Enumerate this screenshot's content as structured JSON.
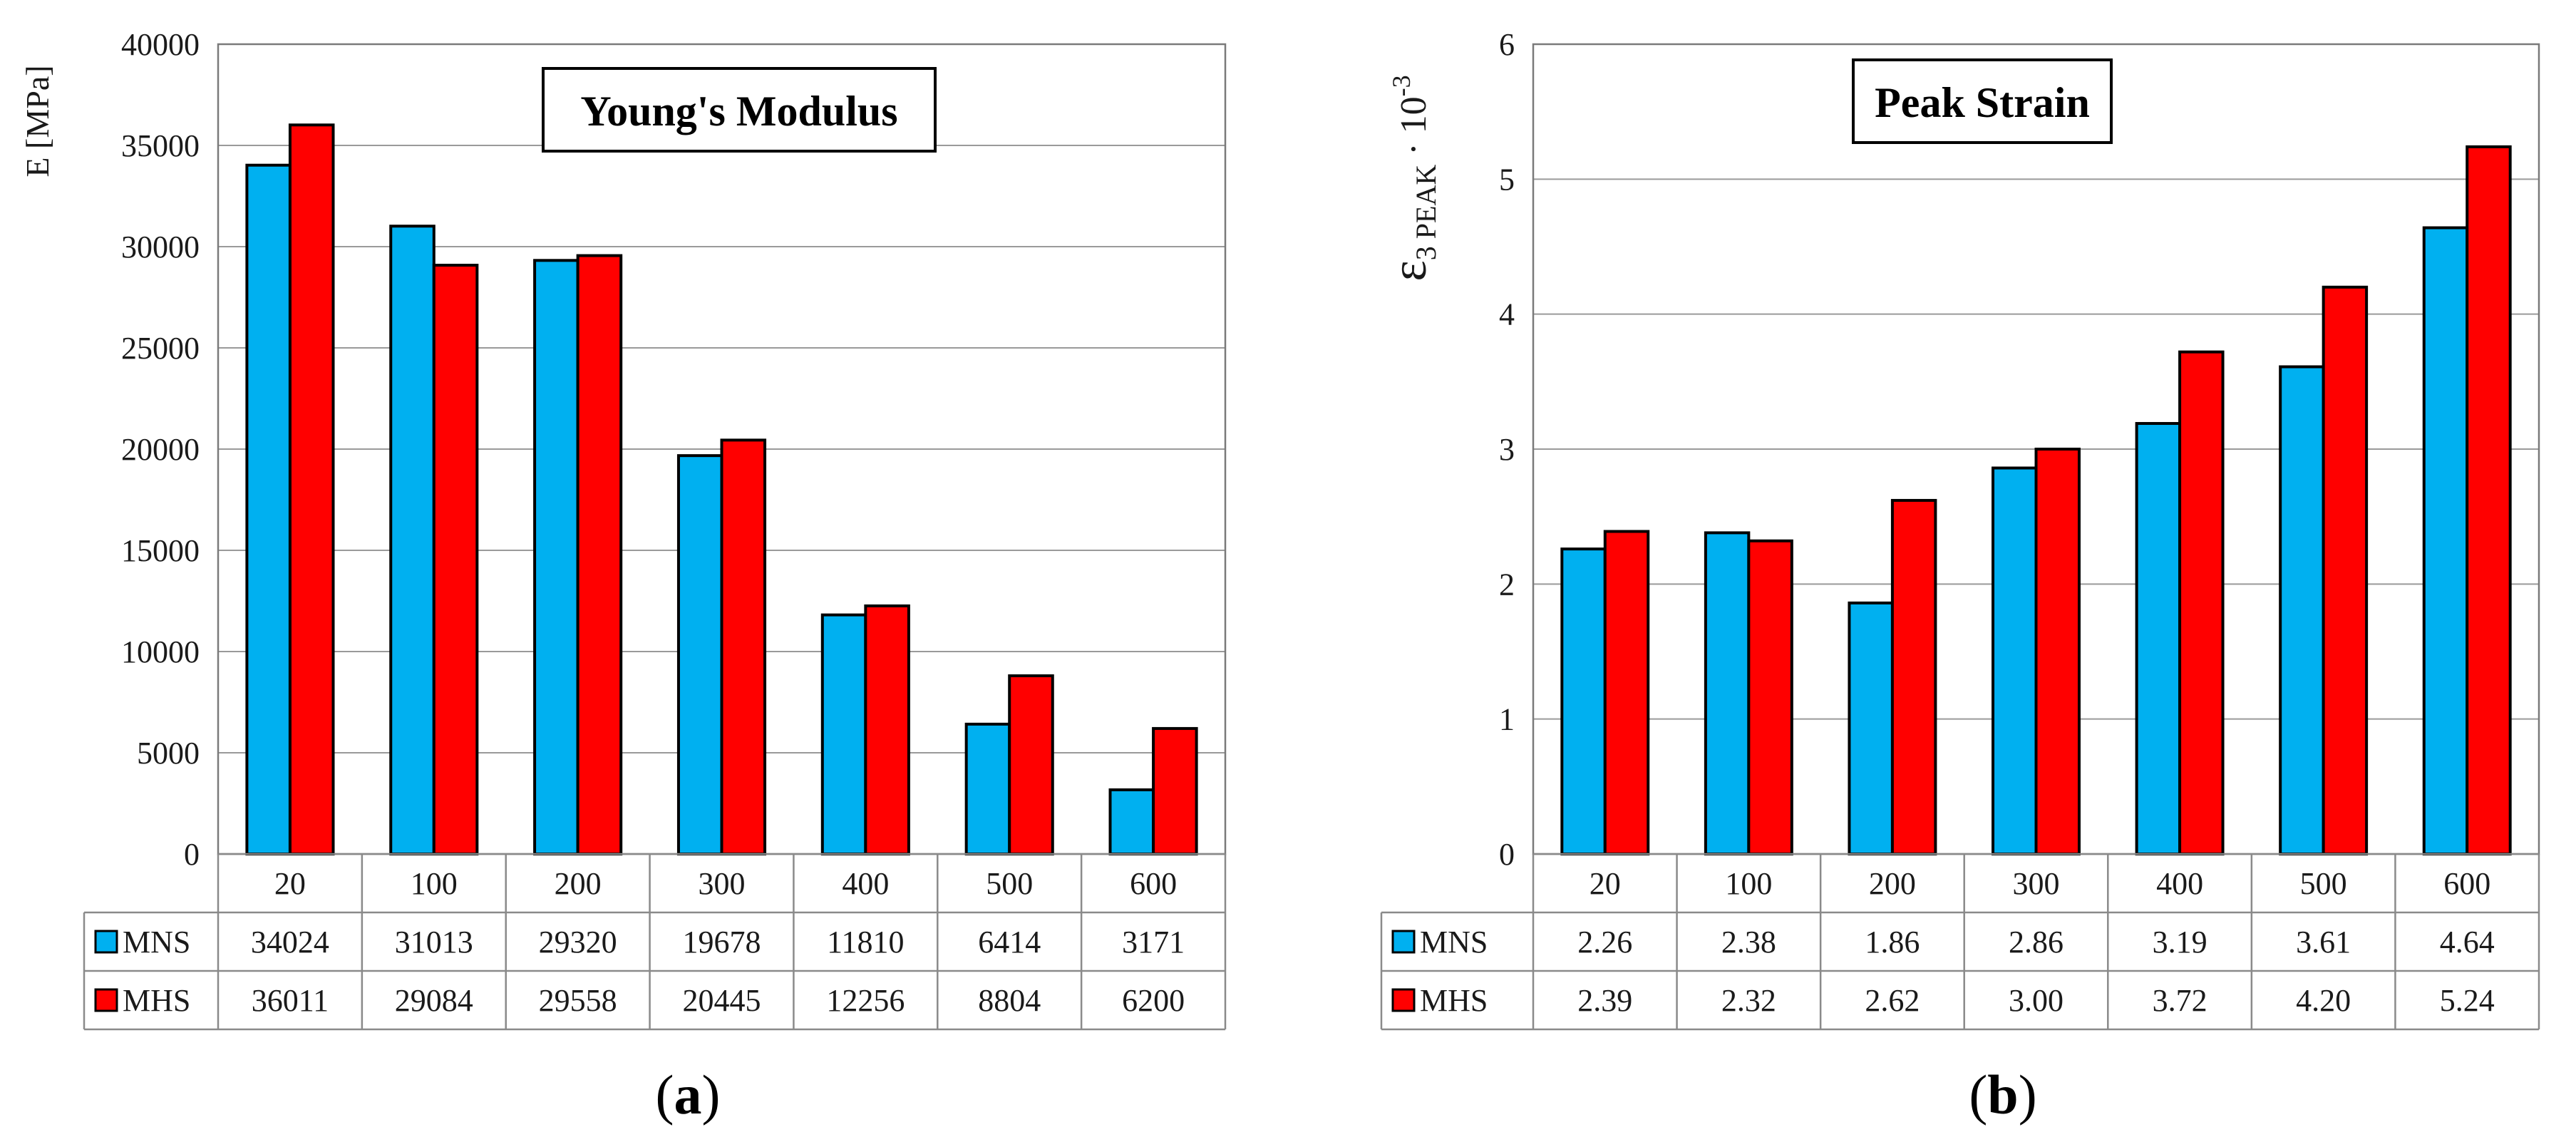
{
  "colors": {
    "MNS": "#00b0f0",
    "MHS": "#ff0000"
  },
  "chart_data": [
    {
      "type": "bar",
      "title": "Young's Modulus",
      "ylabel": "E  [MPa]",
      "xlabel": "",
      "categories": [
        "20",
        "100",
        "200",
        "300",
        "400",
        "500",
        "600"
      ],
      "ylim": [
        0,
        40000
      ],
      "yticks": [
        0,
        5000,
        10000,
        15000,
        20000,
        25000,
        30000,
        35000,
        40000
      ],
      "ytick_labels": [
        "0",
        "5000",
        "10000",
        "15000",
        "20000",
        "25000",
        "30000",
        "35000",
        "40000"
      ],
      "grid": true,
      "legend": "data-table-below",
      "series": [
        {
          "name": "MNS",
          "values": [
            34024,
            31013,
            29320,
            19678,
            11810,
            6414,
            3171
          ],
          "labels": [
            "34024",
            "31013",
            "29320",
            "19678",
            "11810",
            "6414",
            "3171"
          ]
        },
        {
          "name": "MHS",
          "values": [
            36011,
            29084,
            29558,
            20445,
            12256,
            8804,
            6200
          ],
          "labels": [
            "36011",
            "29084",
            "29558",
            "20445",
            "12256",
            "8804",
            "6200"
          ]
        }
      ],
      "caption_open": "(",
      "caption_letter": "a",
      "caption_close": ")"
    },
    {
      "type": "bar",
      "title": "Peak Strain",
      "ylabel_symbol": "ε",
      "ylabel_sub": "3 PEAK",
      "ylabel_rest": " · 10",
      "ylabel_sup": "-3",
      "xlabel": "",
      "categories": [
        "20",
        "100",
        "200",
        "300",
        "400",
        "500",
        "600"
      ],
      "ylim": [
        0,
        6
      ],
      "yticks": [
        0,
        1,
        2,
        3,
        4,
        5,
        6
      ],
      "ytick_labels": [
        "0",
        "1",
        "2",
        "3",
        "4",
        "5",
        "6"
      ],
      "grid": true,
      "legend": "data-table-below",
      "series": [
        {
          "name": "MNS",
          "values": [
            2.26,
            2.38,
            1.86,
            2.86,
            3.19,
            3.61,
            4.64
          ],
          "labels": [
            "2.26",
            "2.38",
            "1.86",
            "2.86",
            "3.19",
            "3.61",
            "4.64"
          ]
        },
        {
          "name": "MHS",
          "values": [
            2.39,
            2.32,
            2.62,
            3.0,
            3.72,
            4.2,
            5.24
          ],
          "labels": [
            "2.39",
            "2.32",
            "2.62",
            "3.00",
            "3.72",
            "4.20",
            "5.24"
          ]
        }
      ],
      "caption_open": "(",
      "caption_letter": "b",
      "caption_close": ")"
    }
  ]
}
